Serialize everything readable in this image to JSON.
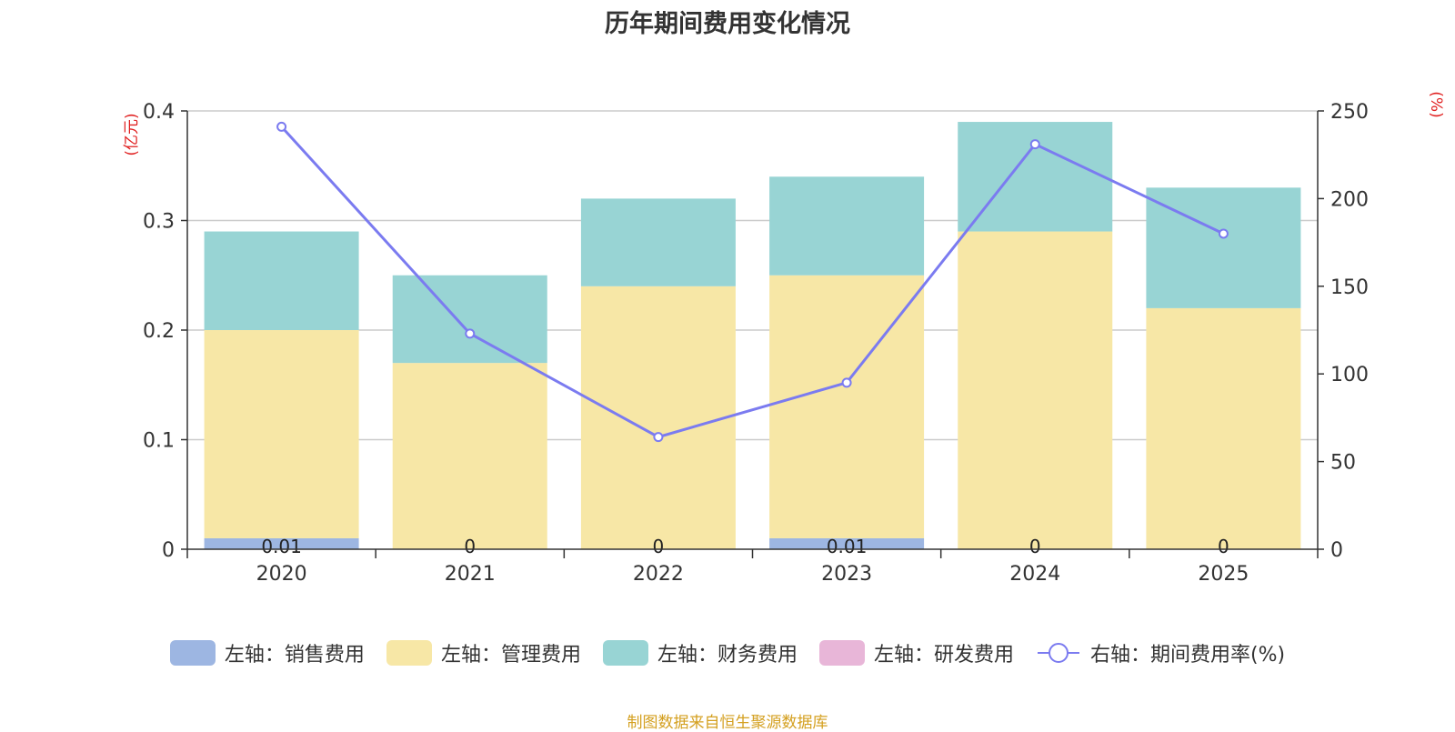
{
  "chart_data": {
    "type": "bar",
    "title": "历年期间费用变化情况",
    "categories": [
      "2020",
      "2021",
      "2022",
      "2023",
      "2024",
      "2025"
    ],
    "stacked": true,
    "y_left": {
      "label": "(亿元)",
      "ylim": [
        0,
        0.4
      ],
      "ticks": [
        "0",
        "0.1",
        "0.2",
        "0.3",
        "0.4"
      ],
      "tick_values": [
        0,
        0.1,
        0.2,
        0.3,
        0.4
      ]
    },
    "y_right": {
      "label": "(%)",
      "ylim": [
        0,
        250
      ],
      "ticks": [
        "0",
        "50",
        "100",
        "150",
        "200",
        "250"
      ],
      "tick_values": [
        0,
        50,
        100,
        150,
        200,
        250
      ]
    },
    "series": [
      {
        "name": "左轴：销售费用",
        "type": "bar",
        "color": "#9db6e2",
        "values": [
          0.01,
          0,
          0,
          0.01,
          0,
          0
        ],
        "labels": [
          "0.01",
          "0",
          "0",
          "0.01",
          "0",
          "0"
        ]
      },
      {
        "name": "左轴：管理费用",
        "type": "bar",
        "color": "#f7e7a6",
        "values": [
          0.19,
          0.17,
          0.24,
          0.24,
          0.29,
          0.22
        ]
      },
      {
        "name": "左轴：财务费用",
        "type": "bar",
        "color": "#98d4d4",
        "values": [
          0.09,
          0.08,
          0.08,
          0.09,
          0.1,
          0.11
        ]
      },
      {
        "name": "左轴：研发费用",
        "type": "bar",
        "color": "#e8b6d8",
        "values": [
          0,
          0,
          0,
          0,
          0,
          0
        ]
      },
      {
        "name": "右轴：期间费用率(%)",
        "type": "line",
        "axis": "right",
        "color": "#7b7bf0",
        "values": [
          241,
          123,
          64,
          95,
          231,
          180
        ]
      }
    ],
    "grid": true,
    "legend_position": "bottom-center"
  },
  "source_note": "制图数据来自恒生聚源数据库"
}
